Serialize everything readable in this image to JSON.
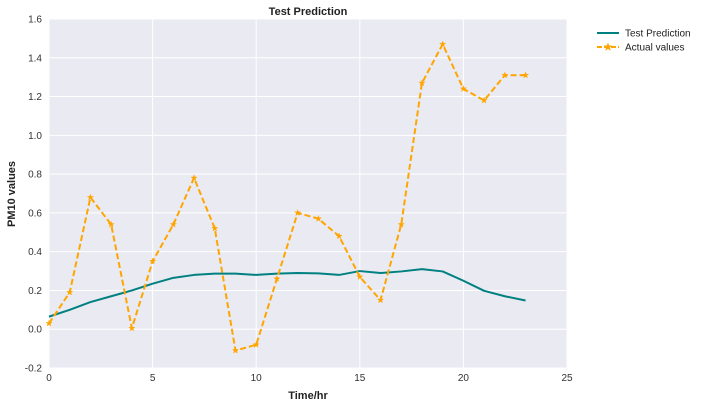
{
  "chart_data": {
    "type": "line",
    "title": "Test Prediction",
    "xlabel": "Time/hr",
    "ylabel": "PM10 values",
    "xlim": [
      0,
      25
    ],
    "ylim": [
      -0.2,
      1.6
    ],
    "xticks": [
      "0",
      "5",
      "10",
      "15",
      "20",
      "25"
    ],
    "yticks": [
      "-0.2",
      "0.0",
      "0.2",
      "0.4",
      "0.6",
      "0.8",
      "1.0",
      "1.2",
      "1.4",
      "1.6"
    ],
    "grid": true,
    "legend_position": "outside-top-right",
    "series": [
      {
        "name": "Test Prediction",
        "color": "#008080",
        "style": "solid",
        "marker": "none",
        "x": [
          0,
          1,
          2,
          3,
          4,
          5,
          6,
          7,
          8,
          9,
          10,
          11,
          12,
          13,
          14,
          15,
          16,
          17,
          18,
          19,
          20,
          21,
          22,
          23
        ],
        "y": [
          0.065,
          0.1,
          0.14,
          0.17,
          0.2,
          0.235,
          0.265,
          0.28,
          0.287,
          0.287,
          0.28,
          0.287,
          0.29,
          0.288,
          0.28,
          0.3,
          0.29,
          0.298,
          0.31,
          0.298,
          0.25,
          0.198,
          0.17,
          0.148
        ]
      },
      {
        "name": "Actual values",
        "color": "#FFA500",
        "style": "dashed",
        "marker": "star",
        "x": [
          0,
          1,
          2,
          3,
          4,
          5,
          6,
          7,
          8,
          9,
          10,
          11,
          12,
          13,
          14,
          15,
          16,
          17,
          18,
          19,
          20,
          21,
          22,
          23
        ],
        "y": [
          0.03,
          0.19,
          0.68,
          0.54,
          0.005,
          0.35,
          0.54,
          0.78,
          0.52,
          -0.11,
          -0.08,
          0.26,
          0.6,
          0.57,
          0.48,
          0.27,
          0.15,
          0.54,
          1.27,
          1.47,
          1.24,
          1.18,
          1.31,
          1.31
        ]
      }
    ]
  }
}
